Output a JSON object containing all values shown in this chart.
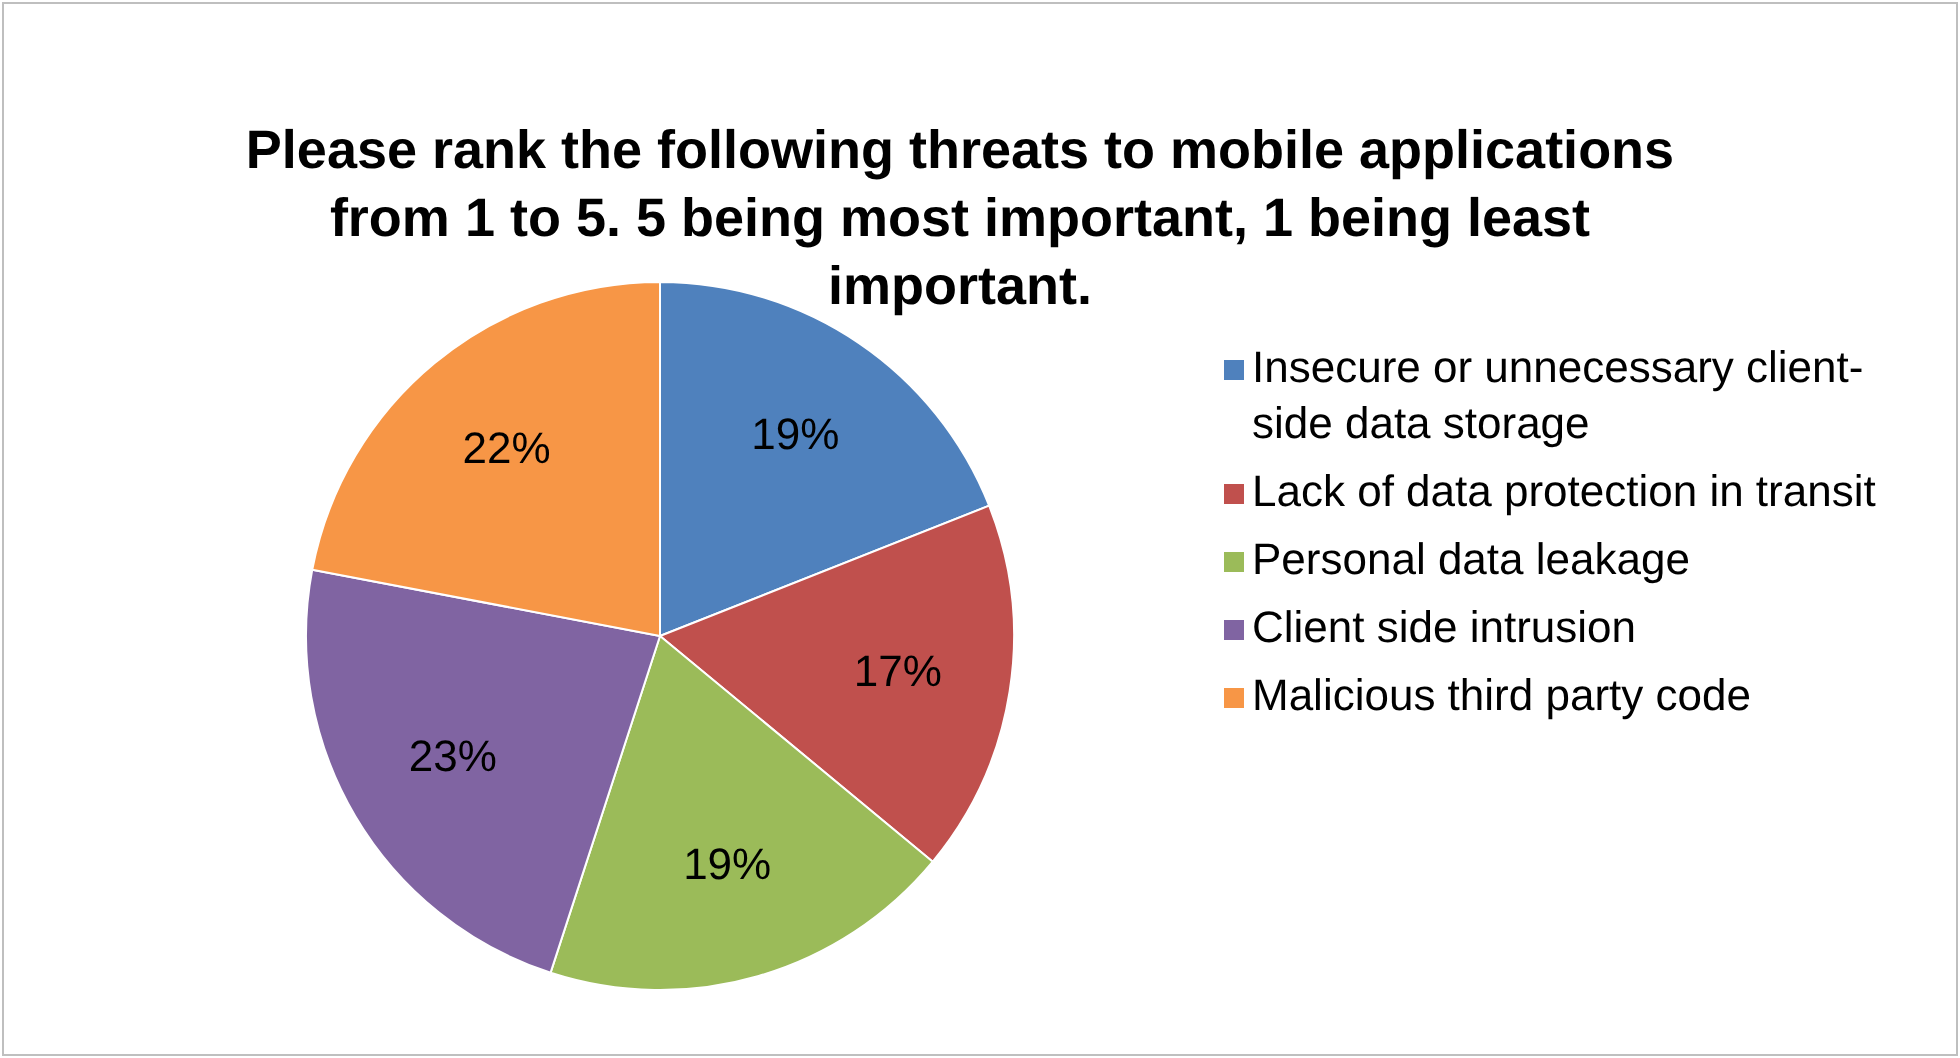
{
  "chart_data": {
    "type": "pie",
    "title": "Please rank the following threats to mobile applications from 1 to 5. 5 being most important, 1 being least important.",
    "categories": [
      "Insecure or unnecessary client-side data storage",
      "Lack of data protection in transit",
      "Personal data leakage",
      "Client side intrusion",
      "Malicious third party code"
    ],
    "values": [
      19,
      17,
      19,
      23,
      22
    ],
    "colors": [
      "#4f81bd",
      "#c0504d",
      "#9bbb59",
      "#8064a2",
      "#f79646"
    ],
    "value_labels": [
      "19%",
      "17%",
      "19%",
      "23%",
      "22%"
    ],
    "legend": "right"
  }
}
